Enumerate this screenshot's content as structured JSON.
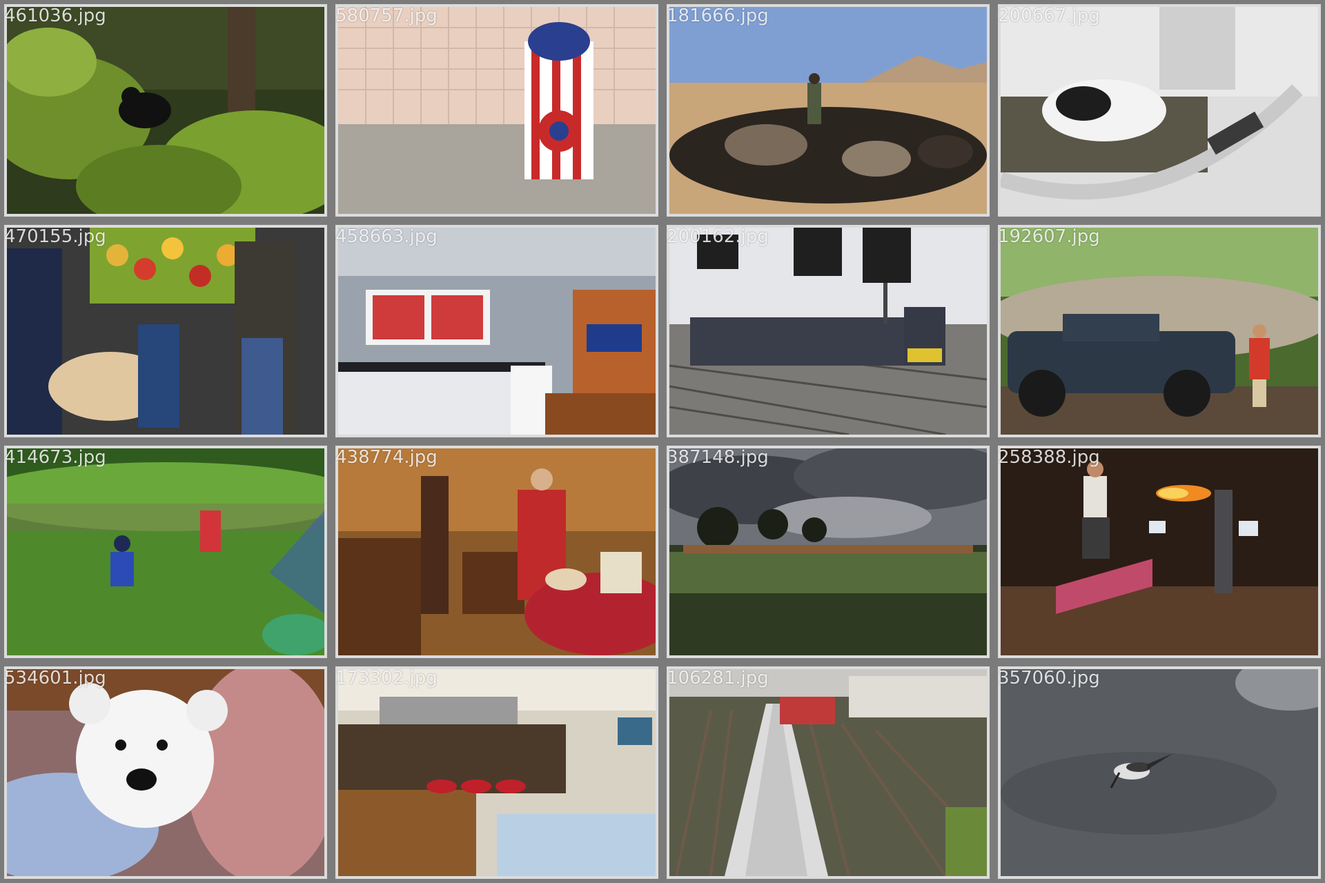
{
  "tiles": [
    {
      "filename": "461036.jpg",
      "scene": "bear-in-forest"
    },
    {
      "filename": "580757.jpg",
      "scene": "fire-hydrant"
    },
    {
      "filename": "181666.jpg",
      "scene": "goat-herd-desert"
    },
    {
      "filename": "200667.jpg",
      "scene": "cow-milking-machine"
    },
    {
      "filename": "470155.jpg",
      "scene": "fruit-market-dog"
    },
    {
      "filename": "458663.jpg",
      "scene": "kitchen-interior"
    },
    {
      "filename": "200162.jpg",
      "scene": "locomotive-tracks"
    },
    {
      "filename": "192607.jpg",
      "scene": "pickup-truck-jungle"
    },
    {
      "filename": "414673.jpg",
      "scene": "tee-ball-game"
    },
    {
      "filename": "438774.jpg",
      "scene": "family-kitchen"
    },
    {
      "filename": "387148.jpg",
      "scene": "cattle-field-storm"
    },
    {
      "filename": "258388.jpg",
      "scene": "skateboard-fire"
    },
    {
      "filename": "534601.jpg",
      "scene": "teddy-bear"
    },
    {
      "filename": "173302.jpg",
      "scene": "restaurant-counter"
    },
    {
      "filename": "106281.jpg",
      "scene": "train-yard-aerial"
    },
    {
      "filename": "357060.jpg",
      "scene": "bird-in-water"
    }
  ]
}
